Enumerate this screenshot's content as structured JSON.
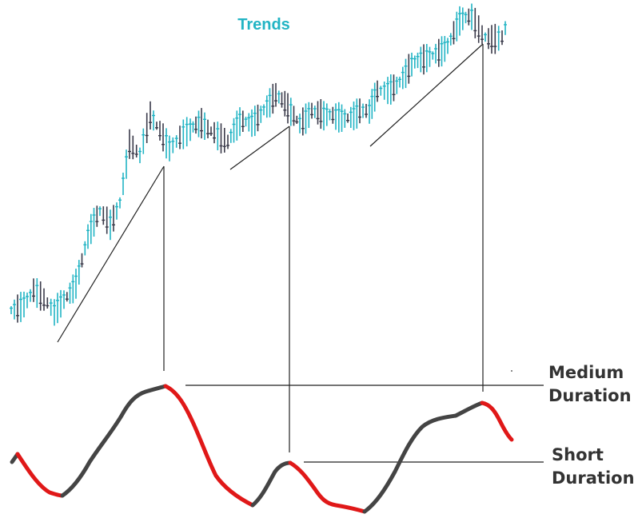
{
  "title": "Trends",
  "labels": {
    "medium": [
      "Medium",
      "Duration"
    ],
    "short": [
      "Short",
      "Duration"
    ]
  },
  "colors": {
    "title": "#22b4c4",
    "up_bars": "#22b4c4",
    "down_bars": "#3a3a4a",
    "oscillator_up": "#444444",
    "oscillator_down": "#e01818",
    "lines": "#222222"
  }
}
